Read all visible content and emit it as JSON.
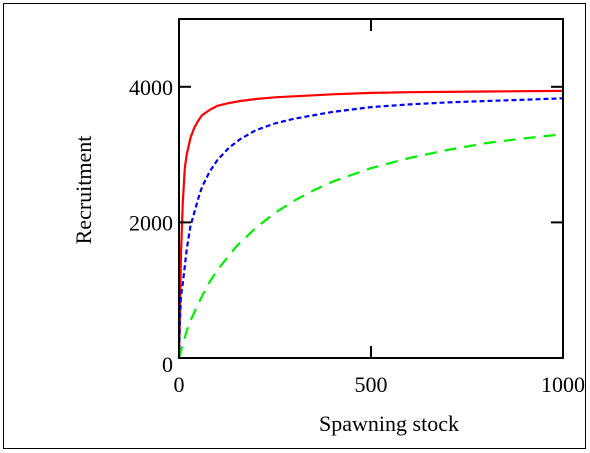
{
  "chart_data": {
    "type": "line",
    "xlabel": "Spawning stock",
    "ylabel": "Recruitment",
    "xlim": [
      0,
      1000
    ],
    "ylim": [
      0,
      5000
    ],
    "x_ticks": [
      0,
      500,
      1000
    ],
    "y_ticks": [
      0,
      2000,
      4000
    ],
    "x_tick_labels": [
      "0",
      "500",
      "1000"
    ],
    "y_tick_labels": [
      "0",
      "2000",
      "4000"
    ],
    "grid": false,
    "legend": "none",
    "series": [
      {
        "color": "#ff0000",
        "style": "solid",
        "points": [
          [
            0,
            0
          ],
          [
            2,
            600
          ],
          [
            5,
            1500
          ],
          [
            10,
            2300
          ],
          [
            15,
            2800
          ],
          [
            20,
            3000
          ],
          [
            30,
            3250
          ],
          [
            40,
            3400
          ],
          [
            50,
            3500
          ],
          [
            60,
            3580
          ],
          [
            80,
            3660
          ],
          [
            100,
            3720
          ],
          [
            130,
            3760
          ],
          [
            160,
            3790
          ],
          [
            200,
            3820
          ],
          [
            250,
            3845
          ],
          [
            300,
            3860
          ],
          [
            400,
            3890
          ],
          [
            500,
            3910
          ],
          [
            600,
            3920
          ],
          [
            800,
            3930
          ],
          [
            1000,
            3940
          ]
        ]
      },
      {
        "color": "#0000ff",
        "style": "dashed",
        "points": [
          [
            0,
            0
          ],
          [
            2,
            500
          ],
          [
            5,
            900
          ],
          [
            10,
            1100
          ],
          [
            20,
            1600
          ],
          [
            30,
            1950
          ],
          [
            40,
            2150
          ],
          [
            50,
            2350
          ],
          [
            60,
            2520
          ],
          [
            80,
            2750
          ],
          [
            100,
            2920
          ],
          [
            130,
            3100
          ],
          [
            160,
            3230
          ],
          [
            200,
            3360
          ],
          [
            250,
            3460
          ],
          [
            300,
            3530
          ],
          [
            400,
            3630
          ],
          [
            500,
            3700
          ],
          [
            600,
            3740
          ],
          [
            700,
            3770
          ],
          [
            800,
            3790
          ],
          [
            900,
            3810
          ],
          [
            1000,
            3830
          ]
        ]
      },
      {
        "color": "#00ee00",
        "style": "long-dashed",
        "points": [
          [
            0,
            0
          ],
          [
            10,
            200
          ],
          [
            20,
            400
          ],
          [
            30,
            550
          ],
          [
            50,
            800
          ],
          [
            75,
            1080
          ],
          [
            100,
            1300
          ],
          [
            150,
            1650
          ],
          [
            200,
            1920
          ],
          [
            250,
            2140
          ],
          [
            300,
            2320
          ],
          [
            350,
            2470
          ],
          [
            400,
            2600
          ],
          [
            450,
            2700
          ],
          [
            500,
            2800
          ],
          [
            600,
            2950
          ],
          [
            700,
            3070
          ],
          [
            800,
            3170
          ],
          [
            900,
            3240
          ],
          [
            1000,
            3300
          ]
        ]
      }
    ]
  }
}
